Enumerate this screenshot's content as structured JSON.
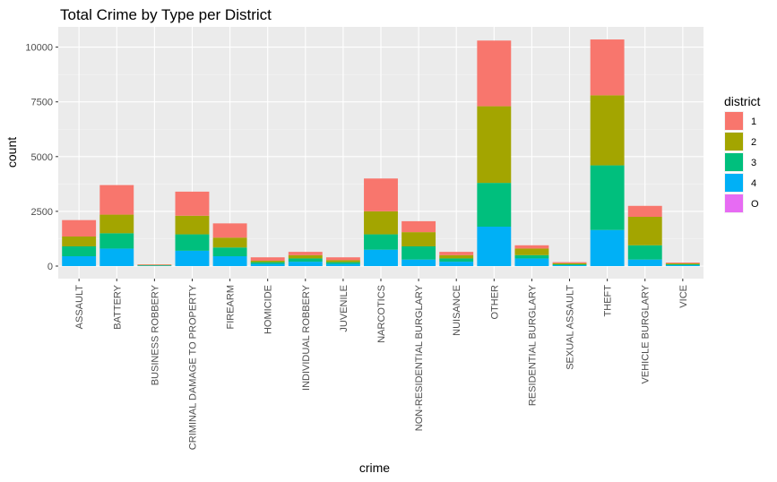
{
  "chart_data": {
    "type": "bar",
    "stacked": true,
    "title": "Total Crime by Type per District",
    "xlabel": "crime",
    "ylabel": "count",
    "ylim": [
      0,
      10800
    ],
    "yticks": [
      0,
      2500,
      5000,
      7500,
      10000
    ],
    "ytick_labels": [
      "0",
      "2500",
      "5000",
      "7500",
      "10000"
    ],
    "grid": true,
    "legend_title": "district",
    "legend_position": "right",
    "categories": [
      "ASSAULT",
      "BATTERY",
      "BUSINESS ROBBERY",
      "CRIMINAL DAMAGE TO PROPERTY",
      "FIREARM",
      "HOMICIDE",
      "INDIVIDUAL ROBBERY",
      "JUVENILE",
      "NARCOTICS",
      "NON-RESIDENTIAL BURGLARY",
      "NUISANCE",
      "OTHER",
      "RESIDENTIAL BURGLARY",
      "SEXUAL ASSAULT",
      "THEFT",
      "VEHICLE BURGLARY",
      "VICE"
    ],
    "series": [
      {
        "name": "O",
        "color": "#E76BF3",
        "values": [
          0,
          0,
          0,
          0,
          0,
          0,
          0,
          0,
          0,
          0,
          0,
          0,
          0,
          0,
          0,
          0,
          0
        ]
      },
      {
        "name": "4",
        "color": "#00B0F6",
        "values": [
          450,
          800,
          20,
          700,
          450,
          100,
          200,
          100,
          750,
          300,
          200,
          1800,
          350,
          40,
          1650,
          300,
          40
        ]
      },
      {
        "name": "3",
        "color": "#00BF7D",
        "values": [
          450,
          700,
          15,
          750,
          400,
          80,
          150,
          80,
          700,
          600,
          150,
          2000,
          150,
          40,
          2950,
          650,
          40
        ]
      },
      {
        "name": "2",
        "color": "#A3A500",
        "values": [
          450,
          850,
          20,
          850,
          450,
          70,
          150,
          90,
          1050,
          650,
          150,
          3500,
          300,
          50,
          3200,
          1300,
          40
        ]
      },
      {
        "name": "1",
        "color": "#F8766D",
        "values": [
          750,
          1350,
          25,
          1100,
          650,
          150,
          150,
          130,
          1500,
          500,
          150,
          3000,
          150,
          50,
          2550,
          500,
          40
        ]
      }
    ]
  }
}
